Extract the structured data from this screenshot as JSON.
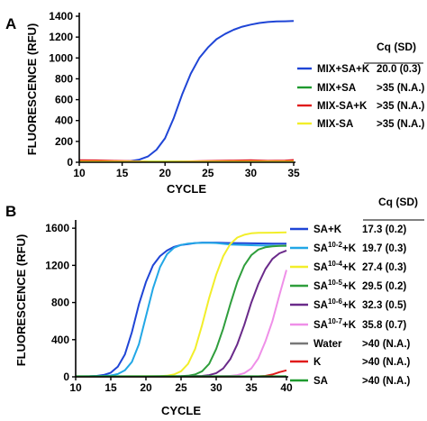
{
  "chart_data": [
    {
      "panel_label": "A",
      "type": "line",
      "xlabel": "CYCLE",
      "ylabel": "FLUORESCENCE (RFU)",
      "xlim": [
        10,
        35
      ],
      "ylim": [
        0,
        1400
      ],
      "x_ticks": [
        "10",
        "15",
        "20",
        "25",
        "30",
        "35"
      ],
      "y_ticks": [
        "0",
        "200",
        "400",
        "600",
        "800",
        "1000",
        "1200",
        "1400"
      ],
      "grid": false,
      "legend_title": "Cq (SD)",
      "series": [
        {
          "name": "MIX+SA+K",
          "cq": "20.0 (0.3)",
          "color": "#1f45d6",
          "x": [
            10,
            11,
            12,
            13,
            14,
            15,
            16,
            17,
            18,
            19,
            20,
            21,
            22,
            23,
            24,
            25,
            26,
            27,
            28,
            29,
            30,
            31,
            32,
            33,
            34,
            35
          ],
          "y": [
            5,
            5,
            5,
            5,
            6,
            8,
            12,
            25,
            55,
            120,
            230,
            420,
            650,
            850,
            1000,
            1100,
            1180,
            1230,
            1270,
            1300,
            1320,
            1335,
            1345,
            1350,
            1352,
            1355
          ]
        },
        {
          "name": "MIX+SA",
          "cq": ">35 (N.A.)",
          "color": "#1e9a2e",
          "x": [
            10,
            15,
            20,
            25,
            30,
            35
          ],
          "y": [
            8,
            8,
            8,
            9,
            9,
            9
          ]
        },
        {
          "name": "MIX-SA+K",
          "cq": ">35 (N.A.)",
          "color": "#e01b1b",
          "x": [
            10,
            12,
            14,
            16,
            18,
            20,
            22,
            24,
            26,
            28,
            30,
            32,
            34,
            35
          ],
          "y": [
            20,
            18,
            14,
            10,
            5,
            4,
            6,
            10,
            14,
            16,
            20,
            14,
            16,
            22
          ]
        },
        {
          "name": "MIX-SA",
          "cq": ">35 (N.A.)",
          "color": "#f2ee2a",
          "x": [
            10,
            15,
            20,
            25,
            30,
            35
          ],
          "y": [
            6,
            6,
            6,
            6,
            6,
            6
          ]
        }
      ]
    },
    {
      "panel_label": "B",
      "type": "line",
      "xlabel": "CYCLE",
      "ylabel": "FLUORESCENCE (RFU)",
      "xlim": [
        10,
        40
      ],
      "ylim": [
        0,
        1650
      ],
      "x_ticks": [
        "10",
        "15",
        "20",
        "25",
        "30",
        "35",
        "40"
      ],
      "y_ticks": [
        "0",
        "400",
        "800",
        "1200",
        "1600"
      ],
      "y_tick_values": [
        0,
        400,
        800,
        1200,
        1600
      ],
      "grid": false,
      "legend_title": "Cq (SD)",
      "series": [
        {
          "name": "SA+K",
          "name_base": "SA",
          "name_sup": "",
          "name_suffix": "+K",
          "cq": "17.3 (0.2)",
          "color": "#1f45d6",
          "x": [
            10,
            11,
            12,
            13,
            14,
            15,
            16,
            17,
            18,
            19,
            20,
            21,
            22,
            23,
            24,
            25,
            26,
            27,
            28,
            29,
            30,
            32,
            34,
            36,
            38,
            40
          ],
          "y": [
            5,
            5,
            6,
            10,
            20,
            45,
            110,
            240,
            480,
            780,
            1020,
            1200,
            1300,
            1360,
            1400,
            1420,
            1430,
            1440,
            1445,
            1445,
            1445,
            1440,
            1438,
            1436,
            1435,
            1435
          ]
        },
        {
          "name": "SA10-2+K",
          "name_base": "SA",
          "name_sup": "10-2",
          "name_suffix": "+K",
          "cq": "19.7 (0.3)",
          "color": "#22a7e6",
          "x": [
            10,
            12,
            14,
            15,
            16,
            17,
            18,
            19,
            20,
            21,
            22,
            23,
            24,
            25,
            26,
            27,
            28,
            29,
            30,
            32,
            34,
            36,
            38,
            40
          ],
          "y": [
            5,
            6,
            10,
            15,
            30,
            70,
            160,
            350,
            650,
            950,
            1180,
            1320,
            1390,
            1420,
            1435,
            1440,
            1442,
            1442,
            1440,
            1425,
            1420,
            1415,
            1412,
            1410
          ]
        },
        {
          "name": "SA10-4+K",
          "name_base": "SA",
          "name_sup": "10-4",
          "name_suffix": "+K",
          "cq": "27.4 (0.3)",
          "color": "#f2ee2a",
          "x": [
            10,
            15,
            20,
            22,
            23,
            24,
            25,
            26,
            27,
            28,
            29,
            30,
            31,
            32,
            33,
            34,
            35,
            36,
            38,
            40
          ],
          "y": [
            5,
            5,
            6,
            8,
            12,
            25,
            60,
            140,
            300,
            560,
            850,
            1100,
            1300,
            1430,
            1500,
            1530,
            1545,
            1550,
            1552,
            1555
          ]
        },
        {
          "name": "SA10-5+K",
          "name_base": "SA",
          "name_sup": "10-5",
          "name_suffix": "+K",
          "cq": "29.5 (0.2)",
          "color": "#2f9e3c",
          "x": [
            10,
            15,
            20,
            25,
            26,
            27,
            28,
            29,
            30,
            31,
            32,
            33,
            34,
            35,
            36,
            37,
            38,
            39,
            40
          ],
          "y": [
            5,
            5,
            5,
            8,
            12,
            25,
            60,
            140,
            300,
            520,
            780,
            1020,
            1200,
            1310,
            1370,
            1395,
            1405,
            1410,
            1412
          ]
        },
        {
          "name": "SA10-6+K",
          "name_base": "SA",
          "name_sup": "10-6",
          "name_suffix": "+K",
          "cq": "32.3 (0.5)",
          "color": "#6a2a8a",
          "x": [
            10,
            15,
            20,
            25,
            28,
            29,
            30,
            31,
            32,
            33,
            34,
            35,
            36,
            37,
            38,
            39,
            40
          ],
          "y": [
            5,
            5,
            5,
            6,
            10,
            18,
            40,
            90,
            190,
            350,
            560,
            800,
            1000,
            1160,
            1270,
            1330,
            1360
          ]
        },
        {
          "name": "SA10-7+K",
          "name_base": "SA",
          "name_sup": "10-7",
          "name_suffix": "+K",
          "cq": "35.8 (0.7)",
          "color": "#ef8fe8",
          "x": [
            10,
            15,
            20,
            25,
            30,
            32,
            33,
            34,
            35,
            36,
            37,
            38,
            39,
            40
          ],
          "y": [
            5,
            5,
            5,
            5,
            6,
            10,
            18,
            40,
            90,
            200,
            380,
            600,
            880,
            1150
          ]
        },
        {
          "name": "Water",
          "name_base": "Water",
          "name_sup": "",
          "name_suffix": "",
          "cq": ">40 (N.A.)",
          "color": "#777777",
          "x": [
            10,
            20,
            30,
            40
          ],
          "y": [
            4,
            4,
            4,
            4
          ]
        },
        {
          "name": "K",
          "name_base": "K",
          "name_sup": "",
          "name_suffix": "",
          "cq": ">40 (N.A.)",
          "color": "#e01b1b",
          "x": [
            10,
            20,
            30,
            36,
            37,
            38,
            39,
            40
          ],
          "y": [
            4,
            4,
            4,
            5,
            10,
            25,
            50,
            70
          ]
        },
        {
          "name": "SA",
          "name_base": "SA",
          "name_sup": "",
          "name_suffix": "",
          "cq": ">40 (N.A.)",
          "color": "#1e9a2e",
          "x": [
            10,
            20,
            30,
            40
          ],
          "y": [
            6,
            6,
            6,
            6
          ]
        }
      ]
    }
  ]
}
